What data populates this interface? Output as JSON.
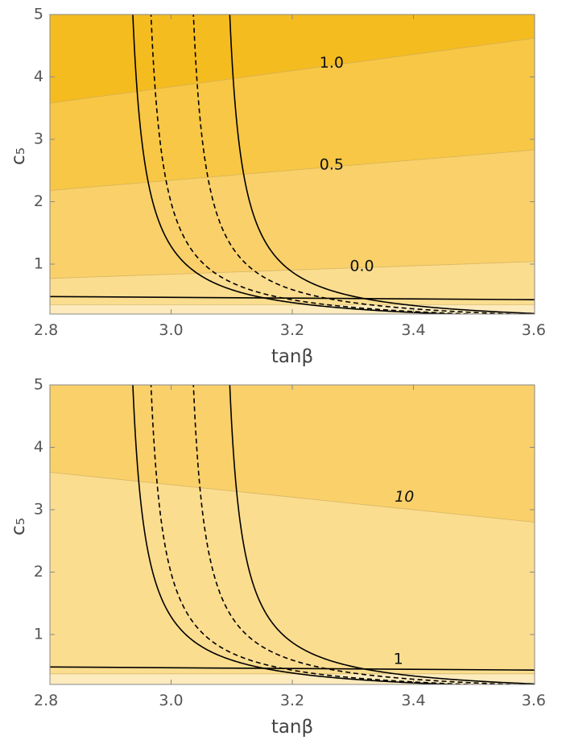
{
  "chart_data": [
    {
      "type": "contour",
      "xlabel": "tanβ",
      "ylabel": "c₅",
      "xlim": [
        2.8,
        3.6
      ],
      "ylim": [
        0.2,
        5.0
      ],
      "x_ticks": [
        "2.8",
        "3.0",
        "3.2",
        "3.4",
        "3.6"
      ],
      "y_ticks": [
        "1",
        "2",
        "3",
        "4",
        "5"
      ],
      "grid": false,
      "band_colors": [
        "#fdebbd",
        "#fbdd8f",
        "#f9d06a",
        "#f7c745",
        "#f5bc20"
      ],
      "contour_boundaries": [
        {
          "x": [
            2.8,
            3.6
          ],
          "y": [
            0.35,
            0.35
          ]
        },
        {
          "x": [
            2.8,
            3.6
          ],
          "y": [
            0.77,
            1.04
          ]
        },
        {
          "x": [
            2.8,
            3.6
          ],
          "y": [
            2.18,
            2.83
          ]
        },
        {
          "x": [
            2.8,
            3.6
          ],
          "y": [
            3.58,
            4.62
          ]
        }
      ],
      "contour_labels": [
        {
          "text": "1.0",
          "x": 3.265,
          "y": 4.22,
          "italic": false
        },
        {
          "text": "0.5",
          "x": 3.265,
          "y": 2.59,
          "italic": false
        },
        {
          "text": "0.0",
          "x": 3.315,
          "y": 0.96,
          "italic": false
        }
      ],
      "horizontal_line": {
        "x": [
          2.8,
          3.6
        ],
        "y": [
          0.48,
          0.43
        ]
      },
      "curves": [
        {
          "style": "solid",
          "a": 0.1092,
          "x0": 2.915
        },
        {
          "style": "dashed",
          "a": 0.1092,
          "x0": 2.945
        },
        {
          "style": "dashed",
          "a": 0.1092,
          "x0": 3.015
        },
        {
          "style": "solid",
          "a": 0.1092,
          "x0": 3.075
        }
      ]
    },
    {
      "type": "contour",
      "xlabel": "tanβ",
      "ylabel": "c₅",
      "xlim": [
        2.8,
        3.6
      ],
      "ylim": [
        0.2,
        5.0
      ],
      "x_ticks": [
        "2.8",
        "3.0",
        "3.2",
        "3.4",
        "3.6"
      ],
      "y_ticks": [
        "1",
        "2",
        "3",
        "4",
        "5"
      ],
      "grid": false,
      "band_colors": [
        "#fdebbd",
        "#fbdd8f",
        "#f9d06a"
      ],
      "contour_boundaries": [
        {
          "x": [
            2.8,
            3.6
          ],
          "y": [
            0.37,
            0.37
          ]
        },
        {
          "x": [
            2.8,
            3.6
          ],
          "y": [
            3.6,
            2.8
          ]
        }
      ],
      "contour_labels": [
        {
          "text": "10",
          "x": 3.385,
          "y": 3.2,
          "italic": true
        },
        {
          "text": "1",
          "x": 3.375,
          "y": 0.6,
          "italic": false
        }
      ],
      "horizontal_line": {
        "x": [
          2.8,
          3.6
        ],
        "y": [
          0.48,
          0.43
        ]
      },
      "curves": [
        {
          "style": "solid",
          "a": 0.1092,
          "x0": 2.915
        },
        {
          "style": "dashed",
          "a": 0.1092,
          "x0": 2.945
        },
        {
          "style": "dashed",
          "a": 0.1092,
          "x0": 3.015
        },
        {
          "style": "solid",
          "a": 0.1092,
          "x0": 3.075
        }
      ]
    }
  ]
}
